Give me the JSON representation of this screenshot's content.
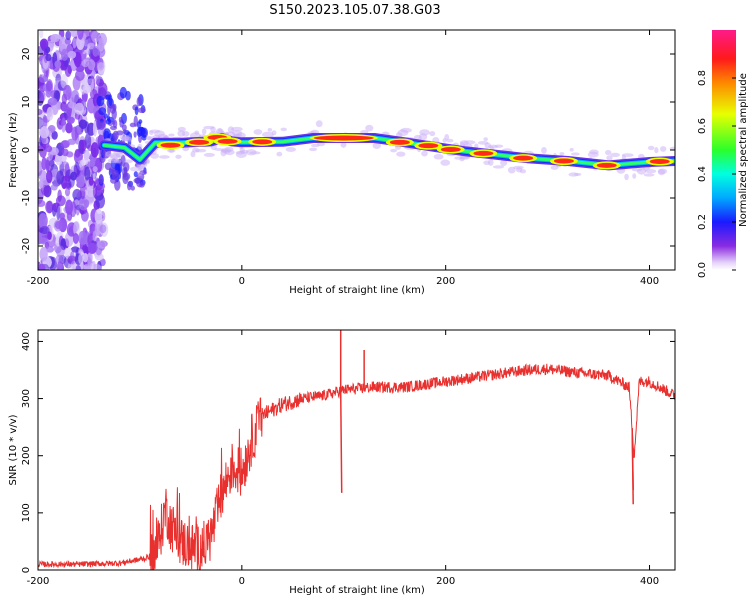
{
  "title": "S150.2023.105.07.38.G03",
  "chart_data": [
    {
      "type": "heatmap",
      "xlabel": "Height of straight line (km)",
      "ylabel": "Frequency (Hz)",
      "xlim": [
        -200,
        425
      ],
      "ylim": [
        -25,
        25
      ],
      "x_ticks": [
        "-200",
        "0",
        "200",
        "400"
      ],
      "y_ticks": [
        "-20",
        "-10",
        "0",
        "10",
        "20"
      ],
      "colorbar": {
        "label": "Normalized spectral amplitude",
        "range": [
          0,
          1
        ],
        "ticks": [
          "0.0",
          "0.2",
          "0.4",
          "0.6",
          "0.8"
        ]
      },
      "ridge": [
        {
          "x": -135,
          "y": 1.0
        },
        {
          "x": -115,
          "y": 0.5
        },
        {
          "x": -100,
          "y": -2.0
        },
        {
          "x": -85,
          "y": 1.5
        },
        {
          "x": -60,
          "y": 1.5
        },
        {
          "x": -30,
          "y": 1.8
        },
        {
          "x": -20,
          "y": 2.5
        },
        {
          "x": -10,
          "y": 1.8
        },
        {
          "x": 0,
          "y": 1.6
        },
        {
          "x": 40,
          "y": 1.7
        },
        {
          "x": 70,
          "y": 2.5
        },
        {
          "x": 130,
          "y": 2.5
        },
        {
          "x": 160,
          "y": 1.6
        },
        {
          "x": 190,
          "y": 0.6
        },
        {
          "x": 220,
          "y": -0.3
        },
        {
          "x": 250,
          "y": -1.0
        },
        {
          "x": 280,
          "y": -1.7
        },
        {
          "x": 320,
          "y": -2.3
        },
        {
          "x": 360,
          "y": -3.2
        },
        {
          "x": 400,
          "y": -2.5
        },
        {
          "x": 425,
          "y": -2.3
        }
      ],
      "peaks": [
        {
          "x": -70,
          "y": 1.0
        },
        {
          "x": -42,
          "y": 1.6
        },
        {
          "x": -24,
          "y": 2.6
        },
        {
          "x": -14,
          "y": 1.8
        },
        {
          "x": 20,
          "y": 1.7
        },
        {
          "x": 100,
          "y": 2.5
        },
        {
          "x": 155,
          "y": 1.6
        },
        {
          "x": 183,
          "y": 0.9
        },
        {
          "x": 205,
          "y": 0.1
        },
        {
          "x": 237,
          "y": -0.7
        },
        {
          "x": 276,
          "y": -1.7
        },
        {
          "x": 316,
          "y": -2.3
        },
        {
          "x": 358,
          "y": -3.2
        },
        {
          "x": 410,
          "y": -2.4
        }
      ]
    },
    {
      "type": "line",
      "xlabel": "Height of straight line (km)",
      "ylabel": "SNR (10 * v/v)",
      "xlim": [
        -200,
        425
      ],
      "ylim": [
        0,
        420
      ],
      "x_ticks": [
        "-200",
        "0",
        "200",
        "400"
      ],
      "y_ticks": [
        "0",
        "100",
        "200",
        "300",
        "400"
      ],
      "color": "#e8302e",
      "series": [
        {
          "x": [
            -200,
            -160,
            -120,
            -95,
            -85,
            -80,
            -75,
            -70,
            -60,
            -50,
            -40,
            -30,
            -20,
            -10,
            0,
            10,
            20,
            40,
            60,
            80,
            100,
            130,
            160,
            200,
            240,
            280,
            300,
            330,
            360,
            370,
            380,
            385,
            390,
            400,
            425
          ],
          "values": [
            10,
            10,
            12,
            20,
            30,
            60,
            110,
            80,
            50,
            40,
            35,
            60,
            130,
            180,
            170,
            230,
            270,
            290,
            300,
            305,
            315,
            320,
            320,
            330,
            340,
            350,
            352,
            345,
            340,
            330,
            320,
            200,
            330,
            330,
            305
          ]
        }
      ],
      "spikes": [
        {
          "x": 97,
          "values": [
            420,
            135
          ]
        },
        {
          "x": 120,
          "values": [
            385
          ]
        },
        {
          "x": 383,
          "values": [
            140,
            115
          ]
        }
      ]
    }
  ]
}
